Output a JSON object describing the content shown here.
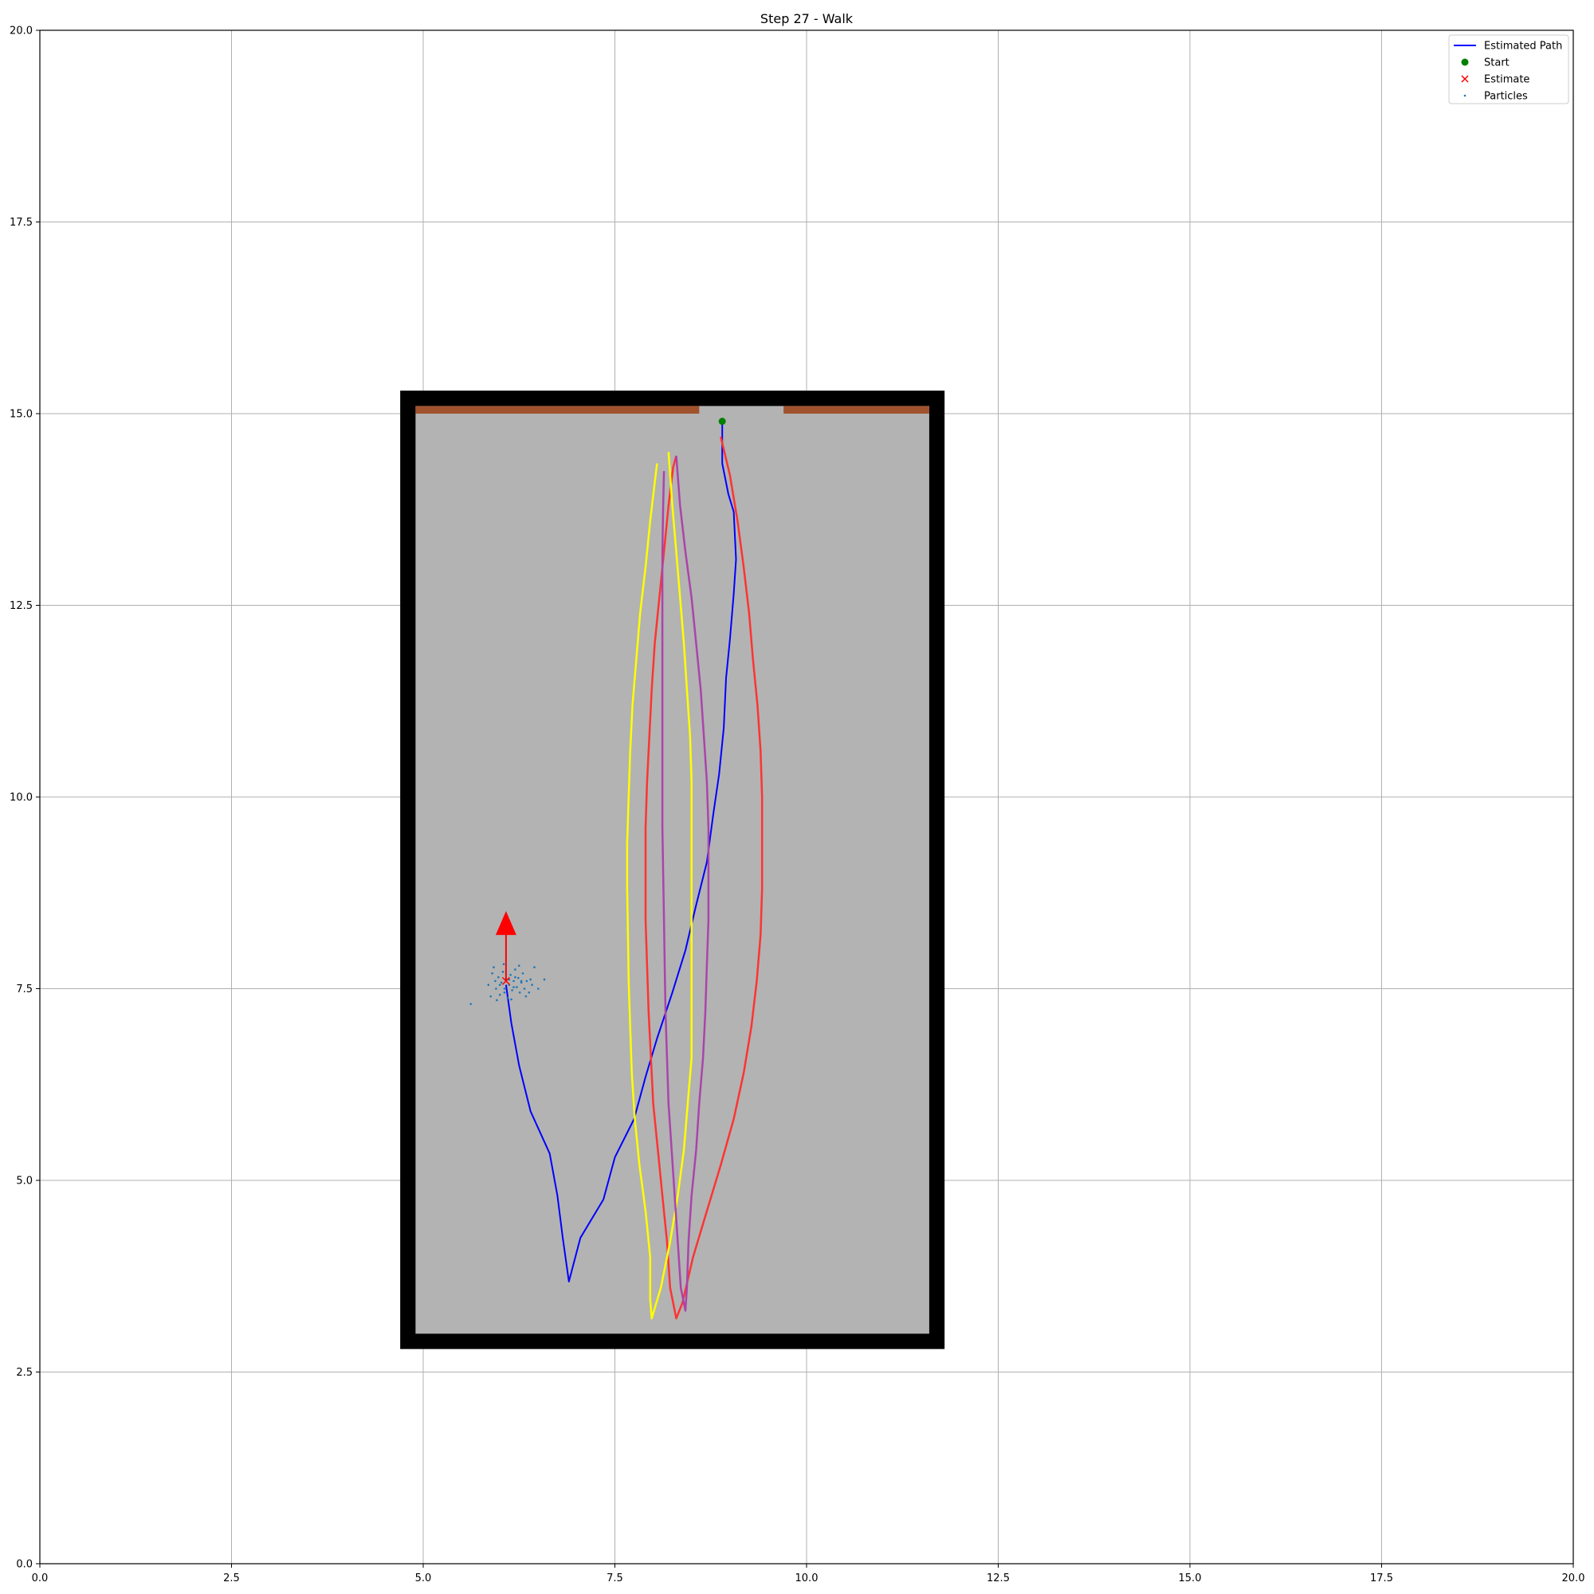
{
  "chart_data": {
    "type": "line",
    "title": "Step 27 - Walk",
    "xlabel": "",
    "ylabel": "",
    "xlim": [
      0,
      20
    ],
    "ylim": [
      0,
      20
    ],
    "xticks": [
      "0.0",
      "2.5",
      "5.0",
      "7.5",
      "10.0",
      "12.5",
      "15.0",
      "17.5",
      "20.0"
    ],
    "yticks": [
      "0.0",
      "2.5",
      "5.0",
      "7.5",
      "10.0",
      "12.5",
      "15.0",
      "17.5",
      "20.0"
    ],
    "grid": true,
    "legend_position": "top-right",
    "legend": [
      {
        "label": "Estimated Path",
        "kind": "line",
        "color": "#0000ff"
      },
      {
        "label": "Start",
        "kind": "dot",
        "color": "#008000"
      },
      {
        "label": "Estimate",
        "kind": "x",
        "color": "#ff0000"
      },
      {
        "label": "Particles",
        "kind": "point",
        "color": "#1f77b4"
      }
    ],
    "room": {
      "wall_outer": {
        "x": [
          4.7,
          11.8
        ],
        "y": [
          2.8,
          15.3
        ]
      },
      "floor": {
        "x": [
          4.9,
          11.6
        ],
        "y": [
          3.0,
          15.1
        ]
      },
      "wall_color": "#000000",
      "floor_color": "#b3b3b3",
      "top_strips": [
        {
          "x": [
            4.9,
            8.6
          ],
          "y": [
            15.0,
            15.1
          ]
        },
        {
          "x": [
            9.7,
            11.6
          ],
          "y": [
            15.0,
            15.1
          ]
        }
      ],
      "strip_color": "#a0522d"
    },
    "series": [
      {
        "name": "Estimated Path",
        "color": "#0000ff",
        "points": [
          [
            8.9,
            14.9
          ],
          [
            8.9,
            14.35
          ],
          [
            8.98,
            13.95
          ],
          [
            9.05,
            13.72
          ],
          [
            9.08,
            13.1
          ],
          [
            9.05,
            12.65
          ],
          [
            9.0,
            12.05
          ],
          [
            8.95,
            11.55
          ],
          [
            8.92,
            10.9
          ],
          [
            8.86,
            10.3
          ],
          [
            8.78,
            9.75
          ],
          [
            8.7,
            9.15
          ],
          [
            8.55,
            8.55
          ],
          [
            8.42,
            8.0
          ],
          [
            8.25,
            7.45
          ],
          [
            8.05,
            6.85
          ],
          [
            7.9,
            6.35
          ],
          [
            7.75,
            5.8
          ],
          [
            7.5,
            5.3
          ],
          [
            7.35,
            4.75
          ],
          [
            7.05,
            4.25
          ],
          [
            6.9,
            3.68
          ],
          [
            6.82,
            4.25
          ],
          [
            6.75,
            4.8
          ],
          [
            6.65,
            5.35
          ],
          [
            6.4,
            5.9
          ],
          [
            6.25,
            6.5
          ],
          [
            6.15,
            7.05
          ],
          [
            6.08,
            7.55
          ]
        ]
      },
      {
        "name": "",
        "color": "#ff3333",
        "points": [
          [
            8.88,
            14.7
          ],
          [
            9.0,
            14.2
          ],
          [
            9.1,
            13.6
          ],
          [
            9.18,
            13.0
          ],
          [
            9.25,
            12.4
          ],
          [
            9.3,
            11.8
          ],
          [
            9.36,
            11.2
          ],
          [
            9.4,
            10.6
          ],
          [
            9.42,
            10.0
          ],
          [
            9.42,
            9.4
          ],
          [
            9.42,
            8.8
          ],
          [
            9.4,
            8.2
          ],
          [
            9.35,
            7.6
          ],
          [
            9.28,
            7.0
          ],
          [
            9.18,
            6.4
          ],
          [
            9.05,
            5.8
          ],
          [
            8.88,
            5.2
          ],
          [
            8.7,
            4.6
          ],
          [
            8.52,
            4.0
          ],
          [
            8.38,
            3.4
          ],
          [
            8.3,
            3.2
          ],
          [
            8.22,
            3.6
          ],
          [
            8.18,
            4.2
          ],
          [
            8.12,
            4.8
          ],
          [
            8.06,
            5.4
          ],
          [
            8.0,
            6.0
          ],
          [
            7.97,
            6.6
          ],
          [
            7.94,
            7.2
          ],
          [
            7.92,
            7.8
          ],
          [
            7.9,
            8.4
          ],
          [
            7.9,
            9.0
          ],
          [
            7.9,
            9.6
          ],
          [
            7.92,
            10.2
          ],
          [
            7.95,
            10.8
          ],
          [
            7.98,
            11.4
          ],
          [
            8.02,
            12.0
          ],
          [
            8.08,
            12.6
          ],
          [
            8.14,
            13.2
          ],
          [
            8.2,
            13.8
          ],
          [
            8.26,
            14.3
          ],
          [
            8.3,
            14.45
          ]
        ]
      },
      {
        "name": "",
        "color": "#ffff00",
        "points": [
          [
            8.2,
            14.5
          ],
          [
            8.25,
            13.8
          ],
          [
            8.3,
            13.2
          ],
          [
            8.35,
            12.6
          ],
          [
            8.4,
            12.0
          ],
          [
            8.44,
            11.4
          ],
          [
            8.48,
            10.8
          ],
          [
            8.5,
            10.2
          ],
          [
            8.5,
            9.6
          ],
          [
            8.5,
            9.0
          ],
          [
            8.5,
            8.4
          ],
          [
            8.5,
            7.8
          ],
          [
            8.5,
            7.2
          ],
          [
            8.5,
            6.6
          ],
          [
            8.45,
            6.0
          ],
          [
            8.4,
            5.4
          ],
          [
            8.32,
            4.8
          ],
          [
            8.22,
            4.2
          ],
          [
            8.1,
            3.6
          ],
          [
            7.98,
            3.2
          ],
          [
            7.96,
            3.45
          ],
          [
            7.96,
            4.0
          ],
          [
            7.9,
            4.6
          ],
          [
            7.82,
            5.2
          ],
          [
            7.76,
            5.8
          ],
          [
            7.72,
            6.4
          ],
          [
            7.7,
            7.0
          ],
          [
            7.68,
            7.6
          ],
          [
            7.67,
            8.2
          ],
          [
            7.66,
            8.8
          ],
          [
            7.66,
            9.4
          ],
          [
            7.68,
            10.0
          ],
          [
            7.7,
            10.6
          ],
          [
            7.73,
            11.2
          ],
          [
            7.78,
            11.8
          ],
          [
            7.83,
            12.4
          ],
          [
            7.9,
            13.0
          ],
          [
            7.96,
            13.6
          ],
          [
            8.02,
            14.1
          ],
          [
            8.05,
            14.35
          ]
        ]
      },
      {
        "name": "",
        "color": "#aa44aa",
        "points": [
          [
            8.3,
            14.45
          ],
          [
            8.35,
            13.8
          ],
          [
            8.42,
            13.2
          ],
          [
            8.5,
            12.6
          ],
          [
            8.56,
            12.0
          ],
          [
            8.62,
            11.4
          ],
          [
            8.66,
            10.8
          ],
          [
            8.7,
            10.2
          ],
          [
            8.72,
            9.6
          ],
          [
            8.72,
            9.0
          ],
          [
            8.72,
            8.4
          ],
          [
            8.7,
            7.8
          ],
          [
            8.68,
            7.2
          ],
          [
            8.65,
            6.6
          ],
          [
            8.6,
            6.0
          ],
          [
            8.56,
            5.4
          ],
          [
            8.5,
            4.8
          ],
          [
            8.46,
            4.2
          ],
          [
            8.44,
            3.6
          ],
          [
            8.42,
            3.3
          ],
          [
            8.36,
            3.6
          ],
          [
            8.32,
            4.2
          ],
          [
            8.28,
            4.8
          ],
          [
            8.24,
            5.4
          ],
          [
            8.2,
            6.0
          ],
          [
            8.18,
            6.6
          ],
          [
            8.16,
            7.2
          ],
          [
            8.15,
            7.8
          ],
          [
            8.14,
            8.4
          ],
          [
            8.13,
            9.0
          ],
          [
            8.12,
            9.6
          ],
          [
            8.12,
            10.2
          ],
          [
            8.12,
            10.8
          ],
          [
            8.12,
            11.4
          ],
          [
            8.12,
            12.0
          ],
          [
            8.12,
            12.6
          ],
          [
            8.12,
            13.2
          ],
          [
            8.13,
            13.8
          ],
          [
            8.14,
            14.25
          ]
        ]
      }
    ],
    "start": {
      "x": 8.9,
      "y": 14.9
    },
    "estimate": {
      "x": 6.08,
      "y": 7.6
    },
    "heading_arrow": {
      "from": [
        6.08,
        7.6
      ],
      "to": [
        6.08,
        8.45
      ],
      "color": "#ff0000"
    },
    "particles": [
      [
        5.62,
        7.3
      ],
      [
        5.85,
        7.55
      ],
      [
        5.9,
        7.7
      ],
      [
        5.95,
        7.5
      ],
      [
        5.98,
        7.65
      ],
      [
        6.0,
        7.42
      ],
      [
        6.02,
        7.58
      ],
      [
        6.04,
        7.72
      ],
      [
        6.06,
        7.5
      ],
      [
        6.08,
        7.63
      ],
      [
        6.1,
        7.38
      ],
      [
        6.12,
        7.55
      ],
      [
        6.14,
        7.68
      ],
      [
        6.16,
        7.48
      ],
      [
        6.18,
        7.6
      ],
      [
        6.2,
        7.75
      ],
      [
        6.22,
        7.52
      ],
      [
        6.24,
        7.64
      ],
      [
        6.26,
        7.45
      ],
      [
        6.28,
        7.58
      ],
      [
        6.3,
        7.7
      ],
      [
        6.32,
        7.5
      ],
      [
        6.35,
        7.6
      ],
      [
        6.38,
        7.45
      ],
      [
        6.42,
        7.55
      ],
      [
        6.45,
        7.78
      ],
      [
        6.5,
        7.5
      ],
      [
        6.58,
        7.62
      ],
      [
        5.88,
        7.4
      ],
      [
        5.92,
        7.78
      ],
      [
        5.96,
        7.35
      ],
      [
        6.05,
        7.82
      ],
      [
        6.15,
        7.36
      ],
      [
        6.25,
        7.8
      ],
      [
        6.34,
        7.4
      ],
      [
        5.94,
        7.6
      ],
      [
        6.0,
        7.55
      ],
      [
        6.06,
        7.45
      ],
      [
        6.12,
        7.62
      ],
      [
        6.18,
        7.52
      ],
      [
        6.2,
        7.65
      ],
      [
        6.28,
        7.6
      ],
      [
        6.4,
        7.62
      ]
    ]
  }
}
